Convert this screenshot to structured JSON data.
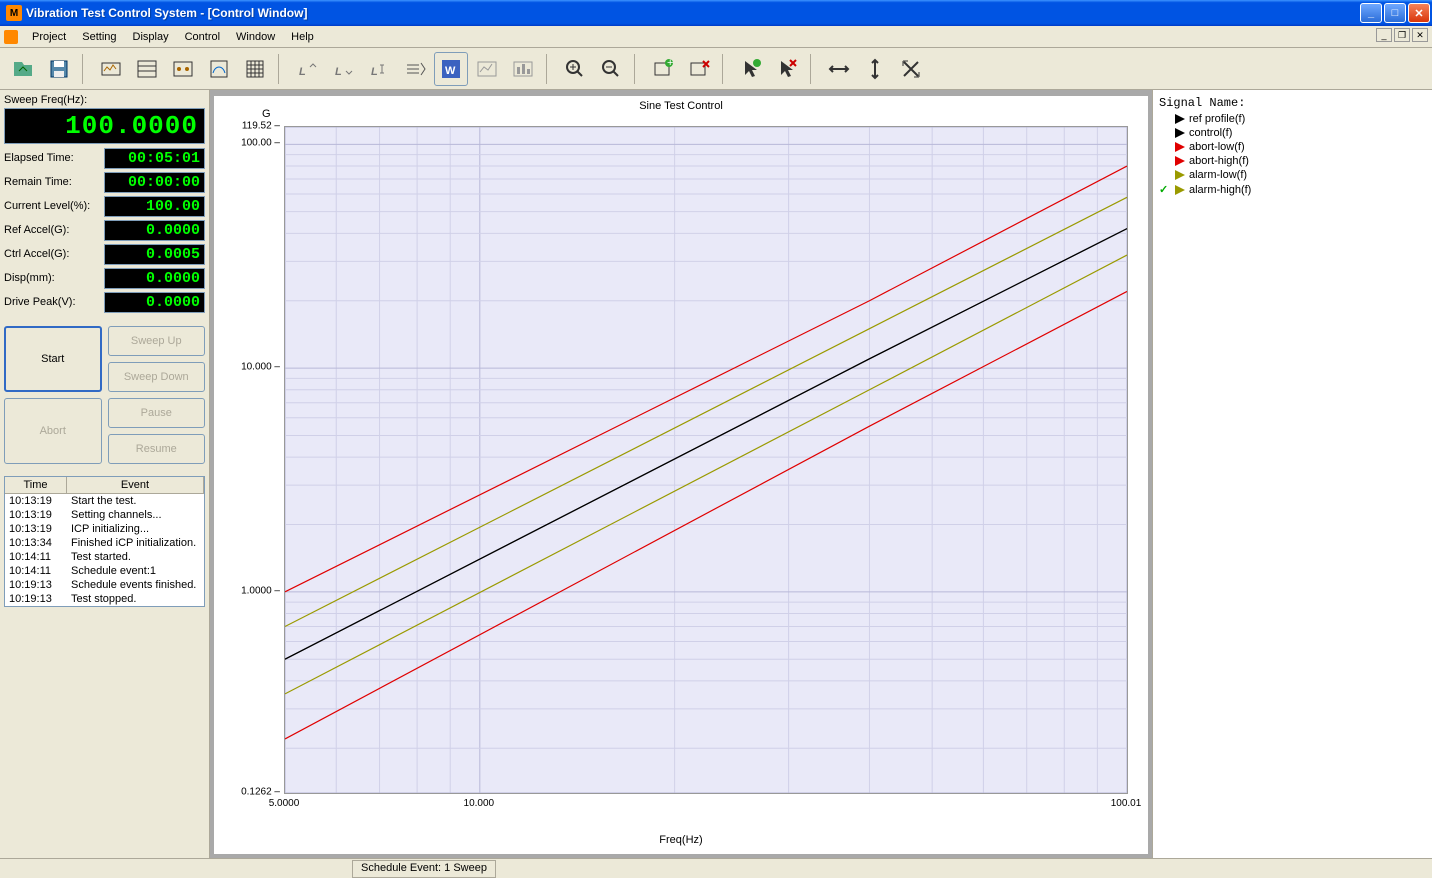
{
  "window": {
    "title": "Vibration Test Control System - [Control Window]"
  },
  "menu": [
    "Project",
    "Setting",
    "Display",
    "Control",
    "Window",
    "Help"
  ],
  "readouts": {
    "sweep_freq_label": "Sweep Freq(Hz):",
    "sweep_freq_value": "100.0000",
    "rows": [
      {
        "label": "Elapsed Time:",
        "value": "00:05:01"
      },
      {
        "label": "Remain Time:",
        "value": "00:00:00"
      },
      {
        "label": "Current Level(%):",
        "value": "100.00"
      },
      {
        "label": "Ref Accel(G):",
        "value": "0.0000"
      },
      {
        "label": "Ctrl Accel(G):",
        "value": "0.0005"
      },
      {
        "label": "Disp(mm):",
        "value": "0.0000"
      },
      {
        "label": "Drive Peak(V):",
        "value": "0.0000"
      }
    ]
  },
  "buttons": {
    "start": "Start",
    "abort": "Abort",
    "sweep_up": "Sweep Up",
    "sweep_down": "Sweep Down",
    "pause": "Pause",
    "resume": "Resume"
  },
  "eventlog": {
    "hdr_time": "Time",
    "hdr_event": "Event",
    "rows": [
      {
        "t": "10:13:19",
        "e": "Start the test."
      },
      {
        "t": "10:13:19",
        "e": "Setting channels..."
      },
      {
        "t": "10:13:19",
        "e": "ICP initializing..."
      },
      {
        "t": "10:13:34",
        "e": "Finished iCP initialization."
      },
      {
        "t": "10:14:11",
        "e": "Test started."
      },
      {
        "t": "10:14:11",
        "e": "Schedule event:1"
      },
      {
        "t": "10:19:13",
        "e": "Schedule events finished."
      },
      {
        "t": "10:19:13",
        "e": "Test stopped."
      }
    ]
  },
  "chart": {
    "title": "Sine Test Control",
    "ylabel": "G",
    "xlabel": "Freq(Hz)",
    "type": "line-loglog",
    "background_color": "#e9e9f8",
    "grid_major_color": "#b8b8d8",
    "grid_minor_color": "#d0d0e8",
    "xlim": [
      5.0,
      100.01
    ],
    "ylim": [
      0.1262,
      119.52
    ],
    "xticks": [
      {
        "v": 5,
        "l": "5.0000"
      },
      {
        "v": 10,
        "l": "10.000"
      },
      {
        "v": 100.01,
        "l": "100.01"
      }
    ],
    "yticks": [
      {
        "v": 119.52,
        "l": "119.52"
      },
      {
        "v": 100,
        "l": "100.00"
      },
      {
        "v": 10,
        "l": "10.000"
      },
      {
        "v": 1,
        "l": "1.0000"
      },
      {
        "v": 0.1262,
        "l": "0.1262"
      }
    ],
    "series": [
      {
        "name": "abort-high",
        "color": "#e00000",
        "pts": [
          [
            5,
            1.0
          ],
          [
            40,
            20
          ],
          [
            100.01,
            80
          ]
        ]
      },
      {
        "name": "alarm-high",
        "color": "#9a9a00",
        "pts": [
          [
            5,
            0.7
          ],
          [
            40,
            15
          ],
          [
            100.01,
            58
          ]
        ]
      },
      {
        "name": "control",
        "color": "#000000",
        "pts": [
          [
            5,
            0.5
          ],
          [
            40,
            11
          ],
          [
            100.01,
            42
          ]
        ]
      },
      {
        "name": "ref-profile",
        "color": "#000000",
        "pts": [
          [
            5,
            0.5
          ],
          [
            40,
            11
          ],
          [
            100.01,
            42
          ]
        ]
      },
      {
        "name": "alarm-low",
        "color": "#9a9a00",
        "pts": [
          [
            5,
            0.35
          ],
          [
            40,
            8
          ],
          [
            100.01,
            32
          ]
        ]
      },
      {
        "name": "abort-low",
        "color": "#e00000",
        "pts": [
          [
            5,
            0.22
          ],
          [
            40,
            5.5
          ],
          [
            100.01,
            22
          ]
        ]
      }
    ]
  },
  "signals": {
    "title": "Signal Name:",
    "items": [
      {
        "label": "ref profile(f)",
        "color": "#000000",
        "checked": false
      },
      {
        "label": "control(f)",
        "color": "#000000",
        "checked": false
      },
      {
        "label": "abort-low(f)",
        "color": "#e00000",
        "checked": false
      },
      {
        "label": "abort-high(f)",
        "color": "#e00000",
        "checked": false
      },
      {
        "label": "alarm-low(f)",
        "color": "#9a9a00",
        "checked": false
      },
      {
        "label": "alarm-high(f)",
        "color": "#9a9a00",
        "checked": true
      }
    ]
  },
  "statusbar": {
    "text": "Schedule Event: 1 Sweep"
  },
  "colors": {
    "xp_blue": "#0054e3",
    "led_green": "#00ff00"
  }
}
